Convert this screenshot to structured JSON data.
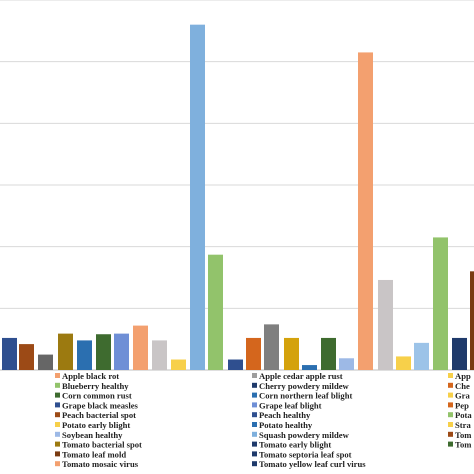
{
  "chart_data": {
    "type": "bar",
    "title": "",
    "xlabel": "",
    "ylabel": "",
    "grid": true,
    "legend_position": "bottom",
    "series": [
      {
        "name": "Apple black rot",
        "value": 0.52,
        "color": "#2f4f8f"
      },
      {
        "name": "Apple cedar apple rust",
        "value": 0.17,
        "color": "#2f4f8f"
      },
      {
        "name": "Apple scab",
        "value": 0.52,
        "color": "#2f4f8f"
      },
      {
        "name": "Blueberry healthy",
        "value": 0.42,
        "color": "#9c4a16"
      },
      {
        "name": "Cherry powdery mildew",
        "value": 0.52,
        "color": "#d4661d"
      },
      {
        "name": "Cherry healthy",
        "value": 0.52,
        "color": "#d4661d"
      },
      {
        "name": "Corn common rust",
        "value": 0.25,
        "color": "#666666"
      },
      {
        "name": "Corn northern leaf blight",
        "value": 0.74,
        "color": "#7f7f7f"
      },
      {
        "name": "Grape black rot",
        "value": 0.52,
        "color": "#f7d04a"
      },
      {
        "name": "Grape black measles",
        "value": 0.59,
        "color": "#9c7a10"
      },
      {
        "name": "Grape leaf blight",
        "value": 0.52,
        "color": "#d4a20c"
      },
      {
        "name": "Pepper bacterial spot",
        "value": 0.52,
        "color": "#d4a20c"
      },
      {
        "name": "Peach bacterial spot",
        "value": 0.48,
        "color": "#2b6fb0"
      },
      {
        "name": "Peach healthy",
        "value": 0.08,
        "color": "#2b6fb0"
      },
      {
        "name": "Potato late blight",
        "value": 0.52,
        "color": "#2b6fb0"
      },
      {
        "name": "Potato early blight",
        "value": 0.58,
        "color": "#3e6b2f"
      },
      {
        "name": "Potato healthy",
        "value": 0.52,
        "color": "#3e6b2f"
      },
      {
        "name": "Strawberry leaf scorch",
        "value": 0.52,
        "color": "#3e6b2f"
      },
      {
        "name": "Soybean healthy",
        "value": 0.59,
        "color": "#6f8fd6"
      },
      {
        "name": "Squash powdery mildew",
        "value": 0.19,
        "color": "#9db9e6"
      },
      {
        "name": "Tomato bacterial spot",
        "value": 0.72,
        "color": "#f3a06f"
      },
      {
        "name": "Tomato early blight",
        "value": 4.29,
        "color": "#f3a06f"
      },
      {
        "name": "Tomato healthy",
        "value": 0.52,
        "color": "#c9c5c6"
      },
      {
        "name": "Tomato leaf mold",
        "value": 0.53,
        "color": "#c9c5c6"
      },
      {
        "name": "Tomato septoria leaf spot",
        "value": 1.46,
        "color": "#c9c5c6"
      },
      {
        "name": "Tomato two spotted spider mite",
        "value": 0.22,
        "color": "#f7d04a"
      },
      {
        "name": "Tomato mosaic virus",
        "value": 0.22,
        "color": "#f7d04a"
      },
      {
        "name": "Tomato yellow leaf curl virus",
        "value": 0.52,
        "color": "#9cc3e8"
      },
      {
        "name": "Tomato target spot",
        "value": 1.87,
        "color": "#92c36b"
      },
      {
        "name": "",
        "value": 5.6,
        "color": "#7fb0dd"
      },
      {
        "name": "",
        "value": 2.3,
        "color": "#92c36b"
      },
      {
        "name": "",
        "value": 2.15,
        "color": "#92c36b"
      },
      {
        "name": "",
        "value": 1.6,
        "color": "#7a3b12"
      }
    ],
    "ylim": [
      0,
      6
    ]
  },
  "legend": {
    "col1": [
      {
        "label": "Apple black rot",
        "color": "#f3a06f"
      },
      {
        "label": "Blueberry healthy",
        "color": "#92c36b"
      },
      {
        "label": "Corn common rust",
        "color": "#3e6b2f"
      },
      {
        "label": "Grape black measles",
        "color": "#2f4f8f"
      },
      {
        "label": "Peach bacterial spot",
        "color": "#9c4a16"
      },
      {
        "label": "Potato early blight",
        "color": "#f7d04a"
      },
      {
        "label": "Soybean healthy",
        "color": "#9db9e6"
      },
      {
        "label": "Tomato bacterial spot",
        "color": "#9c7a10"
      },
      {
        "label": "Tomato leaf mold",
        "color": "#7a3b12"
      },
      {
        "label": "Tomato mosaic virus",
        "color": "#f3a06f"
      }
    ],
    "col2": [
      {
        "label": "Apple cedar apple rust",
        "color": "#9e9e9e"
      },
      {
        "label": "Cherry powdery mildew",
        "color": "#1f3a6b"
      },
      {
        "label": "Corn northern leaf blight",
        "color": "#2b6fb0"
      },
      {
        "label": "Grape leaf blight",
        "color": "#6f8fd6"
      },
      {
        "label": "Peach healthy",
        "color": "#2f4f8f"
      },
      {
        "label": "Potato healthy",
        "color": "#2b6fb0"
      },
      {
        "label": "Squash powdery mildew",
        "color": "#7fb0dd"
      },
      {
        "label": "Tomato early blight",
        "color": "#1f3a6b"
      },
      {
        "label": "Tomato septoria leaf spot",
        "color": "#1f3a6b"
      },
      {
        "label": "Tomato yellow leaf curl virus",
        "color": "#1f3a6b"
      }
    ],
    "col3": [
      {
        "label": "App",
        "color": "#f7d04a"
      },
      {
        "label": "Che",
        "color": "#d4661d"
      },
      {
        "label": "Gra",
        "color": "#f7d04a"
      },
      {
        "label": "Pep",
        "color": "#d4661d"
      },
      {
        "label": "Pota",
        "color": "#92c36b"
      },
      {
        "label": "Stra",
        "color": "#f7d04a"
      },
      {
        "label": "Tom",
        "color": "#9c4a16"
      },
      {
        "label": "Tom",
        "color": "#3e6b2f"
      }
    ]
  }
}
